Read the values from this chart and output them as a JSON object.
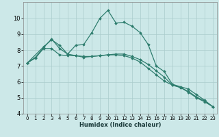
{
  "xlabel": "Humidex (Indice chaleur)",
  "bg_color": "#cce8e8",
  "grid_color": "#aacccc",
  "line_color": "#2e7d6e",
  "xlim": [
    -0.5,
    23.5
  ],
  "ylim": [
    4,
    11
  ],
  "xticks": [
    0,
    1,
    2,
    3,
    4,
    5,
    6,
    7,
    8,
    9,
    10,
    11,
    12,
    13,
    14,
    15,
    16,
    17,
    18,
    19,
    20,
    21,
    22,
    23
  ],
  "yticks": [
    4,
    5,
    6,
    7,
    8,
    9,
    10
  ],
  "series": [
    {
      "x": [
        0,
        1,
        2,
        3,
        4,
        5,
        6,
        7,
        8,
        9,
        10,
        11,
        12,
        13,
        14,
        15,
        16,
        17,
        18,
        19,
        20,
        21,
        22,
        23
      ],
      "y": [
        7.2,
        7.55,
        8.15,
        8.7,
        8.1,
        7.75,
        7.65,
        7.55,
        7.6,
        7.65,
        7.7,
        7.75,
        7.75,
        7.6,
        7.4,
        7.1,
        6.7,
        6.3,
        5.8,
        5.65,
        5.35,
        5.0,
        4.75,
        4.45
      ]
    },
    {
      "x": [
        0,
        1,
        2,
        3,
        4,
        5,
        6,
        7,
        8,
        9,
        10,
        11,
        12,
        13,
        14,
        15,
        16,
        17,
        18,
        19,
        20,
        21,
        22,
        23
      ],
      "y": [
        7.2,
        7.5,
        8.1,
        8.1,
        7.7,
        7.65,
        7.65,
        7.6,
        7.6,
        7.65,
        7.7,
        7.7,
        7.65,
        7.5,
        7.25,
        6.85,
        6.45,
        6.05,
        5.8,
        5.65,
        5.4,
        5.05,
        4.8,
        4.45
      ]
    },
    {
      "x": [
        0,
        2,
        3,
        4,
        5,
        6,
        7,
        8,
        9,
        10,
        11,
        12,
        13,
        14,
        15,
        16,
        17,
        18,
        19,
        20,
        21,
        22,
        23
      ],
      "y": [
        7.2,
        8.2,
        8.65,
        8.3,
        7.75,
        8.3,
        8.35,
        9.1,
        10.0,
        10.5,
        9.7,
        9.75,
        9.5,
        9.1,
        8.35,
        7.0,
        6.65,
        5.85,
        5.7,
        5.55,
        5.2,
        4.85,
        4.45
      ]
    }
  ]
}
